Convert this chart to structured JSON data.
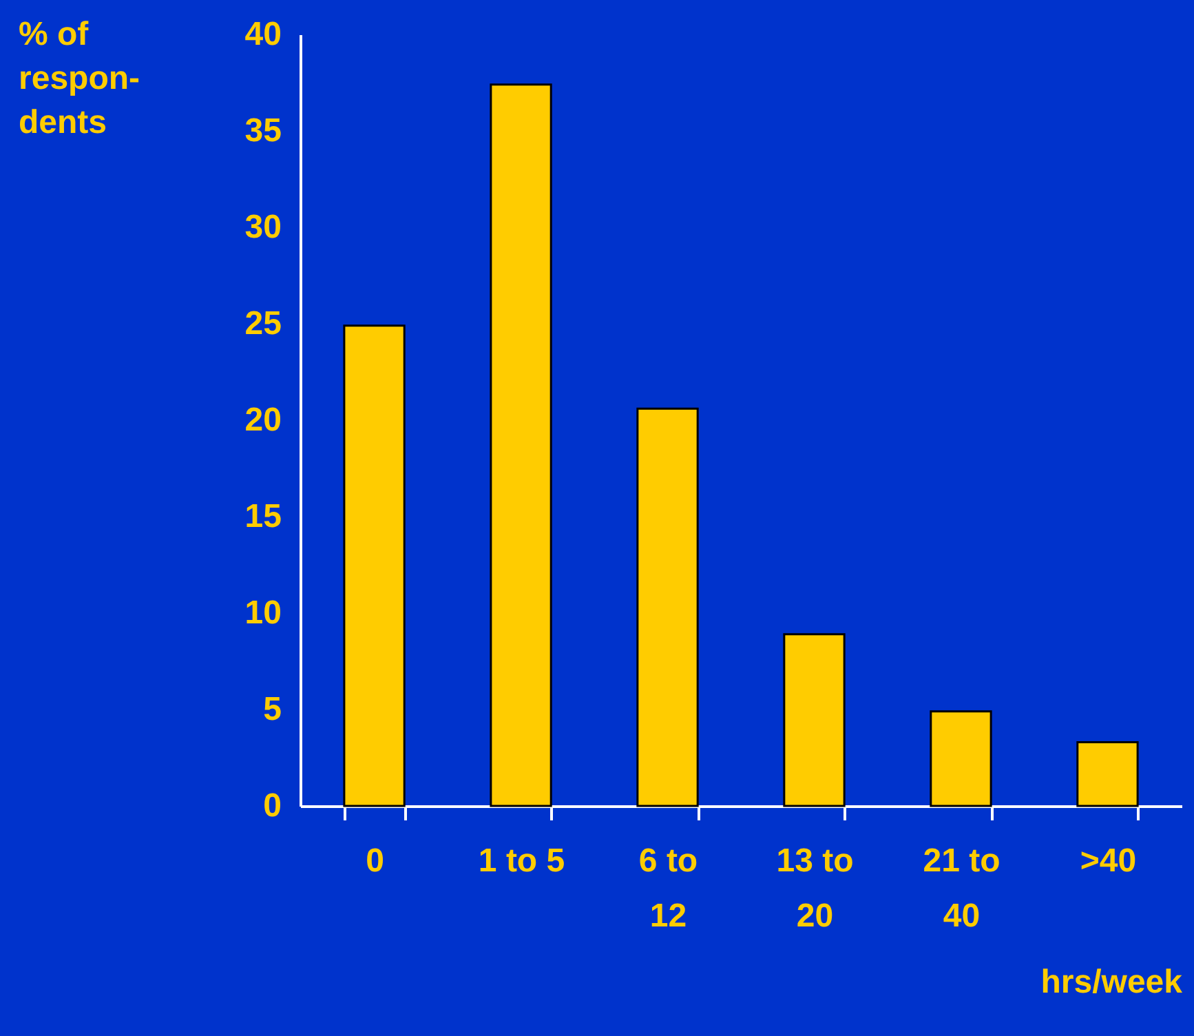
{
  "chart_data": {
    "type": "bar",
    "ylabel": "% of respon-dents",
    "xlabel": "hrs/week",
    "categories": [
      "0",
      "1 to 5",
      "6 to 12",
      "13 to 20",
      "21 to 40",
      ">40"
    ],
    "values": [
      24.9,
      37.4,
      20.6,
      8.9,
      4.9,
      3.3
    ],
    "color": "#ffcc00",
    "ylim": [
      0,
      40
    ],
    "yticks": [
      0,
      5,
      10,
      15,
      20,
      25,
      30,
      35,
      40
    ]
  }
}
